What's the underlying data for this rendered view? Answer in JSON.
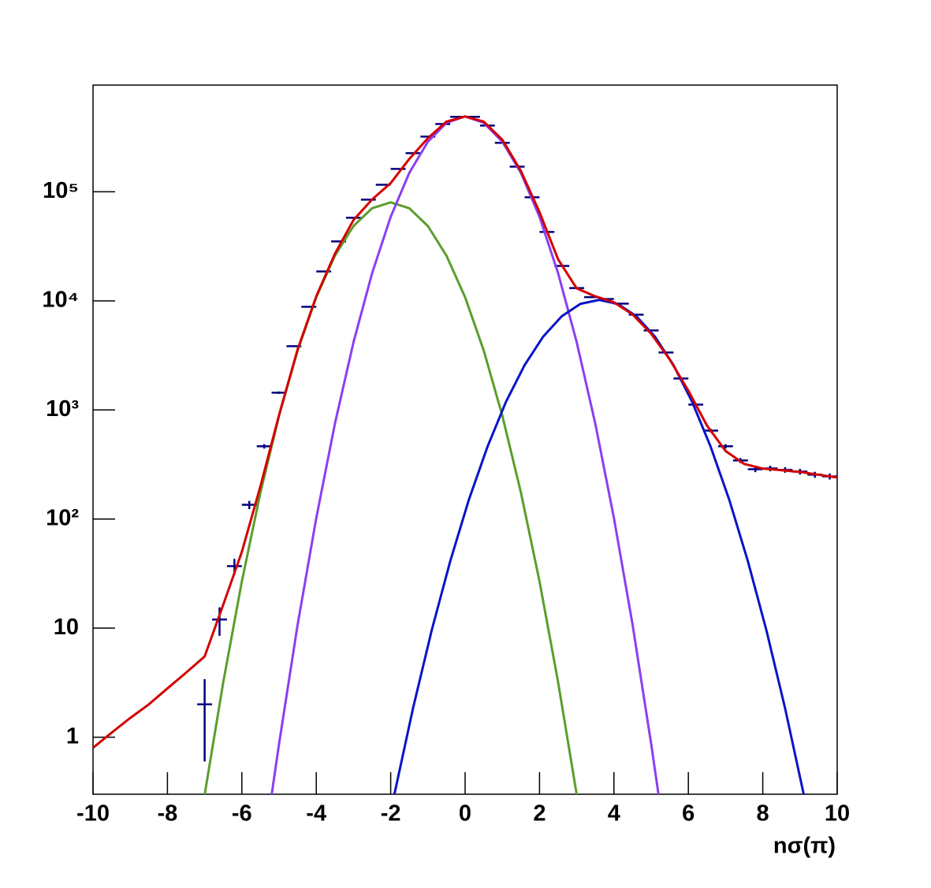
{
  "chart_data": {
    "type": "line",
    "xlabel": "nσ(π)",
    "xlim": [
      -10,
      10
    ],
    "ylim": [
      0.3,
      950000
    ],
    "log_y": true,
    "xticks": [
      -10,
      -8,
      -6,
      -4,
      -2,
      0,
      2,
      4,
      6,
      8,
      10
    ],
    "yticks": [
      1,
      10,
      {
        "value": 100,
        "label": "10²"
      },
      {
        "value": 1000,
        "label": "10³"
      },
      {
        "value": 10000,
        "label": "10⁴"
      },
      {
        "value": 100000,
        "label": "10⁵"
      }
    ],
    "series": [
      {
        "style": "errorbar",
        "color": "#00007f",
        "x": [
          -7.0,
          -6.6,
          -6.2,
          -5.8,
          -5.4,
          -5.0,
          -4.6,
          -4.2,
          -3.8,
          -3.4,
          -3.0,
          -2.6,
          -2.2,
          -1.8,
          -1.4,
          -1.0,
          -0.6,
          -0.2,
          0.2,
          0.6,
          1.0,
          1.4,
          1.8,
          2.2,
          2.6,
          3.0,
          3.4,
          3.8,
          4.2,
          4.6,
          5.0,
          5.4,
          5.8,
          6.2,
          6.6,
          7.0,
          7.4,
          7.8,
          8.2,
          8.6,
          9.0,
          9.4,
          9.8
        ],
        "values": [
          2,
          12,
          37,
          135,
          464,
          1440,
          3840,
          8810,
          18600,
          35100,
          57800,
          84700,
          116000,
          162000,
          226000,
          320000,
          418000,
          486000,
          486000,
          404000,
          281000,
          170000,
          89000,
          42800,
          20900,
          13100,
          10800,
          10400,
          9420,
          7460,
          5350,
          3360,
          1940,
          1120,
          647,
          464,
          344,
          286,
          291,
          282,
          272,
          255,
          246
        ],
        "errors": [
          1.4,
          3.5,
          6.1,
          11.6,
          21.5,
          38,
          62,
          94,
          136,
          187,
          240,
          291,
          341,
          402,
          475,
          566,
          647,
          697,
          697,
          636,
          530,
          412,
          298,
          207,
          145,
          114,
          104,
          102,
          97,
          86,
          73,
          58,
          44,
          33.5,
          25.4,
          21.5,
          18.5,
          16.9,
          17.1,
          16.8,
          16.5,
          16,
          15.7
        ]
      },
      {
        "style": "line",
        "color": "#5a9e2c",
        "x": [
          -7,
          -6.5,
          -6,
          -5.5,
          -5,
          -4.5,
          -4,
          -3.5,
          -3,
          -2.5,
          -2,
          -1.5,
          -1,
          -0.5,
          0,
          0.5,
          1,
          1.5,
          2,
          2.5,
          3
        ],
        "values": [
          0.297,
          3.19,
          26.8,
          175,
          887,
          3510,
          10800,
          25900,
          48500,
          70600,
          80000,
          70600,
          48500,
          25900,
          10800,
          3510,
          887,
          175,
          26.8,
          3.19,
          0.297
        ]
      },
      {
        "style": "line",
        "color": "#8a3ff0",
        "x": [
          -5.2,
          -5,
          -4.5,
          -4,
          -3.5,
          -3,
          -2.5,
          -2,
          -1.5,
          -1,
          -0.5,
          0,
          0.5,
          1,
          1.5,
          2,
          2.5,
          3,
          3.5,
          4,
          4.5,
          5,
          5.2
        ],
        "values": [
          0.296,
          0.87,
          10.8,
          102,
          746,
          4170,
          17900,
          58900,
          149000,
          288000,
          429000,
          490000,
          429000,
          288000,
          149000,
          58900,
          17900,
          4170,
          746,
          102,
          10.8,
          0.87,
          0.296
        ]
      },
      {
        "style": "line",
        "color": "#0a14c8",
        "x": [
          -1.9,
          -1.4,
          -0.9,
          -0.4,
          0.1,
          0.6,
          1.1,
          1.6,
          2.1,
          2.6,
          3.1,
          3.6,
          4.1,
          4.6,
          5.1,
          5.6,
          6.1,
          6.6,
          7.1,
          7.6,
          8.1,
          8.6,
          9.1
        ],
        "values": [
          0.3,
          1.84,
          9.48,
          41,
          150,
          459,
          1190,
          2580,
          4710,
          7240,
          9390,
          10200,
          9390,
          7240,
          4710,
          2580,
          1190,
          459,
          150,
          41,
          9.48,
          1.84,
          0.3
        ]
      },
      {
        "style": "line",
        "color": "#d40000",
        "x": [
          -10,
          -9.5,
          -9,
          -8.5,
          -8,
          -7.5,
          -7,
          -6.5,
          -6,
          -5.5,
          -5,
          -4.5,
          -4,
          -3.5,
          -3,
          -2.5,
          -2,
          -1.5,
          -1,
          -0.5,
          0,
          0.5,
          1,
          1.5,
          2,
          2.5,
          3,
          3.5,
          4,
          4.5,
          5,
          5.5,
          6,
          6.5,
          7,
          7.5,
          8,
          8.5,
          9,
          9.5,
          10
        ],
        "values": [
          0.8,
          1.1,
          1.5,
          2.0,
          2.8,
          3.9,
          5.5,
          16.4,
          50,
          200,
          900,
          3600,
          11000,
          27000,
          55000,
          85000,
          120000,
          200000,
          310000,
          440000,
          490000,
          440000,
          300000,
          155000,
          65000,
          24000,
          13000,
          11000,
          9700,
          7500,
          5000,
          2900,
          1500,
          720,
          420,
          320,
          290,
          280,
          270,
          255,
          240
        ]
      }
    ]
  }
}
